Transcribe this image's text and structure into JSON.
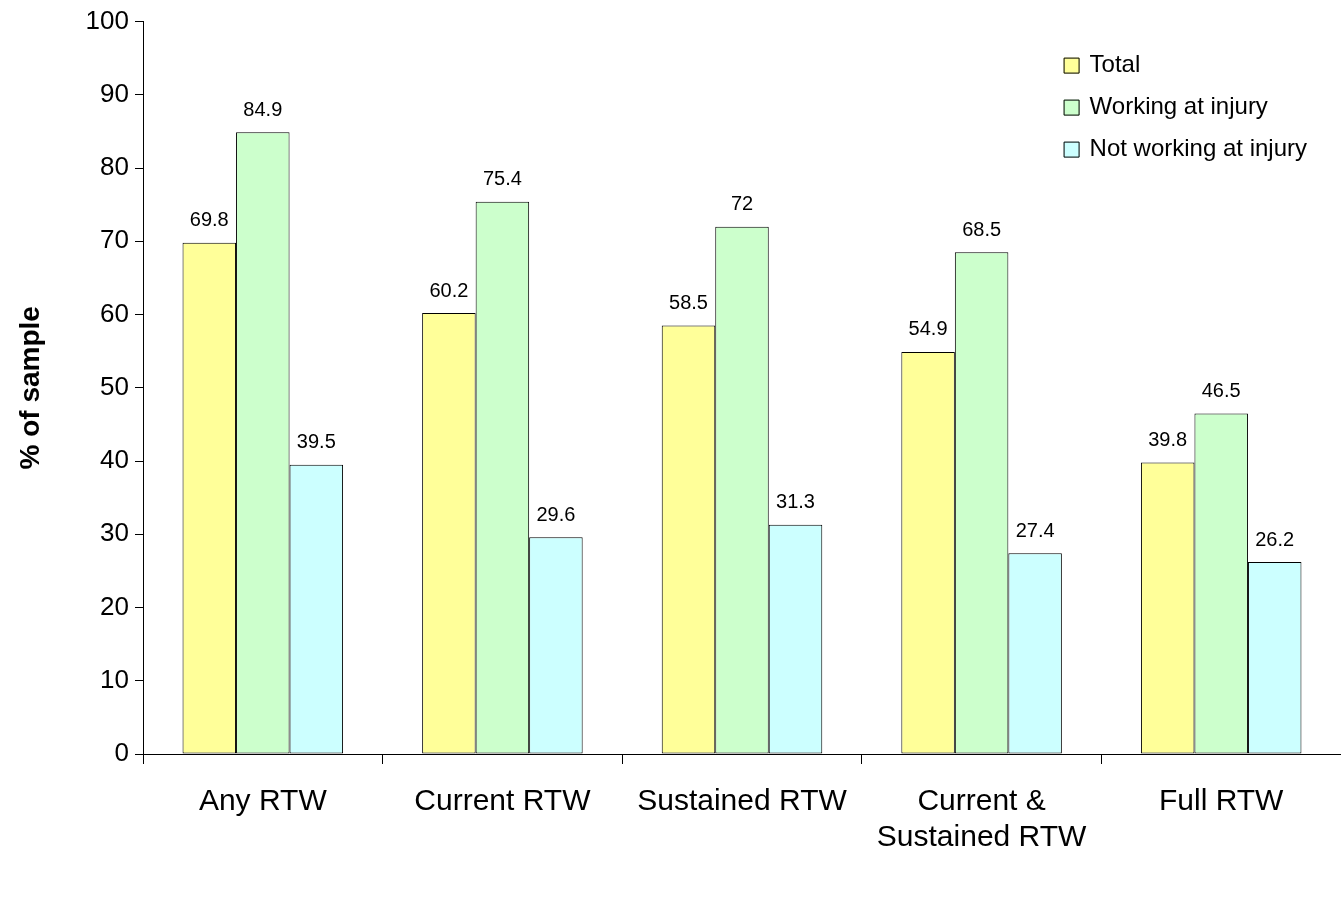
{
  "chart_data": {
    "type": "bar",
    "ylabel": "% of sample",
    "categories": [
      "Any RTW",
      "Current RTW",
      "Sustained RTW",
      "Current & Sustained RTW",
      "Full RTW"
    ],
    "series": [
      {
        "name": "Total",
        "color": "#ffff99",
        "values": [
          69.8,
          60.2,
          58.5,
          54.9,
          39.8
        ]
      },
      {
        "name": "Working at injury",
        "color": "#ccffcc",
        "values": [
          84.9,
          75.4,
          72,
          68.5,
          46.5
        ]
      },
      {
        "name": "Not working at injury",
        "color": "#ccffff",
        "values": [
          39.5,
          29.6,
          31.3,
          27.4,
          26.2
        ]
      }
    ],
    "ylim": [
      0,
      100
    ],
    "yticks": [
      0,
      10,
      20,
      30,
      40,
      50,
      60,
      70,
      80,
      90,
      100
    ],
    "grid": false,
    "legend": "top right",
    "data_labels": true
  }
}
